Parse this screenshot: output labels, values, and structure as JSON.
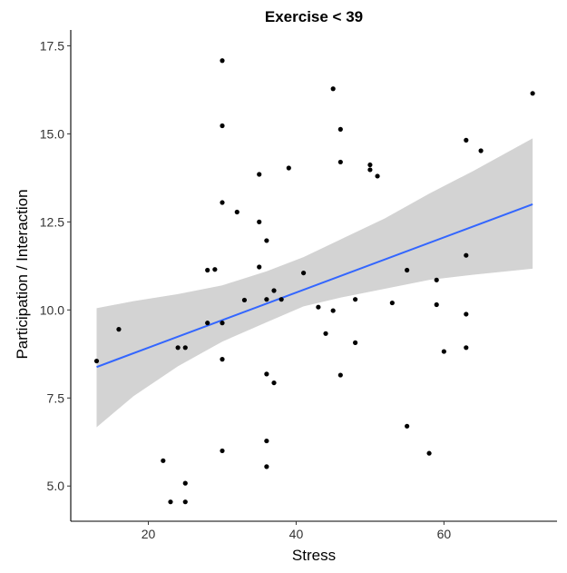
{
  "chart_data": {
    "type": "scatter",
    "title": "Exercise < 39",
    "xlabel": "Stress",
    "ylabel": "Participation / Interaction",
    "xlim": [
      9.5,
      75.3
    ],
    "ylim": [
      4.0,
      17.95
    ],
    "x_ticks": [
      20,
      40,
      60
    ],
    "y_ticks": [
      5.0,
      7.5,
      10.0,
      12.5,
      15.0,
      17.5
    ],
    "x_tick_labels": [
      "20",
      "40",
      "60"
    ],
    "y_tick_labels": [
      "5.0",
      "7.5",
      "10.0",
      "12.5",
      "15.0",
      "17.5"
    ],
    "grid": false,
    "points": [
      {
        "x": 13,
        "y": 8.55
      },
      {
        "x": 16,
        "y": 9.45
      },
      {
        "x": 22,
        "y": 5.72
      },
      {
        "x": 23,
        "y": 4.55
      },
      {
        "x": 24,
        "y": 8.93
      },
      {
        "x": 25,
        "y": 8.93
      },
      {
        "x": 25,
        "y": 5.08
      },
      {
        "x": 25,
        "y": 4.55
      },
      {
        "x": 28,
        "y": 11.13
      },
      {
        "x": 28,
        "y": 9.63
      },
      {
        "x": 29,
        "y": 11.15
      },
      {
        "x": 30,
        "y": 17.08
      },
      {
        "x": 30,
        "y": 15.23
      },
      {
        "x": 30,
        "y": 13.05
      },
      {
        "x": 30,
        "y": 9.63
      },
      {
        "x": 30,
        "y": 8.6
      },
      {
        "x": 30,
        "y": 6.0
      },
      {
        "x": 32,
        "y": 12.78
      },
      {
        "x": 33,
        "y": 10.28
      },
      {
        "x": 35,
        "y": 13.85
      },
      {
        "x": 35,
        "y": 12.5
      },
      {
        "x": 35,
        "y": 11.22
      },
      {
        "x": 36,
        "y": 11.97
      },
      {
        "x": 36,
        "y": 10.3
      },
      {
        "x": 36,
        "y": 8.18
      },
      {
        "x": 36,
        "y": 6.28
      },
      {
        "x": 36,
        "y": 5.55
      },
      {
        "x": 37,
        "y": 10.55
      },
      {
        "x": 37,
        "y": 7.93
      },
      {
        "x": 38,
        "y": 10.3
      },
      {
        "x": 39,
        "y": 14.03
      },
      {
        "x": 41,
        "y": 11.05
      },
      {
        "x": 43,
        "y": 10.08
      },
      {
        "x": 44,
        "y": 9.33
      },
      {
        "x": 45,
        "y": 16.28
      },
      {
        "x": 45,
        "y": 9.98
      },
      {
        "x": 46,
        "y": 15.13
      },
      {
        "x": 46,
        "y": 14.2
      },
      {
        "x": 46,
        "y": 8.15
      },
      {
        "x": 48,
        "y": 10.3
      },
      {
        "x": 48,
        "y": 9.07
      },
      {
        "x": 50,
        "y": 14.12
      },
      {
        "x": 50,
        "y": 13.98
      },
      {
        "x": 51,
        "y": 13.8
      },
      {
        "x": 53,
        "y": 10.2
      },
      {
        "x": 55,
        "y": 11.13
      },
      {
        "x": 55,
        "y": 6.7
      },
      {
        "x": 58,
        "y": 5.93
      },
      {
        "x": 59,
        "y": 10.85
      },
      {
        "x": 59,
        "y": 10.15
      },
      {
        "x": 60,
        "y": 8.82
      },
      {
        "x": 63,
        "y": 14.82
      },
      {
        "x": 63,
        "y": 11.55
      },
      {
        "x": 63,
        "y": 9.88
      },
      {
        "x": 63,
        "y": 8.93
      },
      {
        "x": 65,
        "y": 14.52
      },
      {
        "x": 72,
        "y": 16.15
      }
    ],
    "fit_line": {
      "x": [
        13,
        72
      ],
      "y": [
        8.38,
        13.0
      ]
    },
    "confidence_band": {
      "x": [
        13,
        18,
        24,
        30,
        36,
        41,
        46,
        52,
        58,
        64,
        72
      ],
      "upper": [
        10.05,
        10.25,
        10.45,
        10.7,
        11.1,
        11.5,
        12.0,
        12.6,
        13.3,
        13.95,
        14.87
      ],
      "lower": [
        6.67,
        7.55,
        8.4,
        9.1,
        9.65,
        10.1,
        10.35,
        10.6,
        10.85,
        11.0,
        11.17
      ]
    },
    "colors": {
      "point": "#000000",
      "fit_line": "#3366ff",
      "band": "#d3d3d3",
      "axis": "#000000",
      "tick_text": "#333333"
    }
  }
}
